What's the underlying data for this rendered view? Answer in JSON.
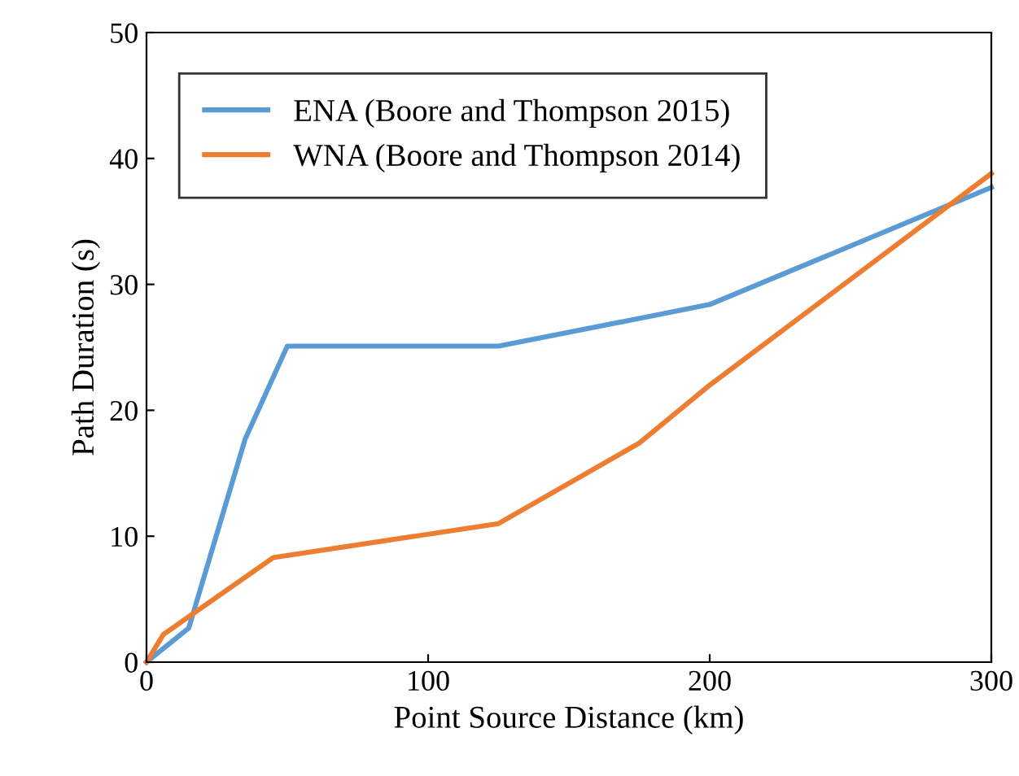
{
  "chart_data": {
    "type": "line",
    "xlabel": "Point Source Distance (km)",
    "ylabel": "Path Duration (s)",
    "xlim": [
      0,
      300
    ],
    "xticks": [
      0,
      100,
      200,
      300
    ],
    "ylim": [
      0,
      50
    ],
    "yticks": [
      0,
      10,
      20,
      30,
      40,
      50
    ],
    "grid": false,
    "legend": "top left",
    "marker": "none",
    "line_style": "solid",
    "series": [
      {
        "name": "ENA (Boore and Thompson 2015)",
        "color": "#5b9bd5",
        "x": [
          0,
          15,
          35,
          50,
          125,
          200,
          300
        ],
        "values": [
          0,
          2.7,
          17.7,
          25.1,
          25.1,
          28.4,
          37.7
        ]
      },
      {
        "name": "WNA (Boore and Thompson 2014)",
        "color": "#ed7d31",
        "x": [
          0,
          6,
          45,
          125,
          175,
          200,
          300
        ],
        "values": [
          0,
          2.2,
          8.3,
          11.0,
          17.4,
          22.0,
          38.8
        ]
      }
    ]
  }
}
